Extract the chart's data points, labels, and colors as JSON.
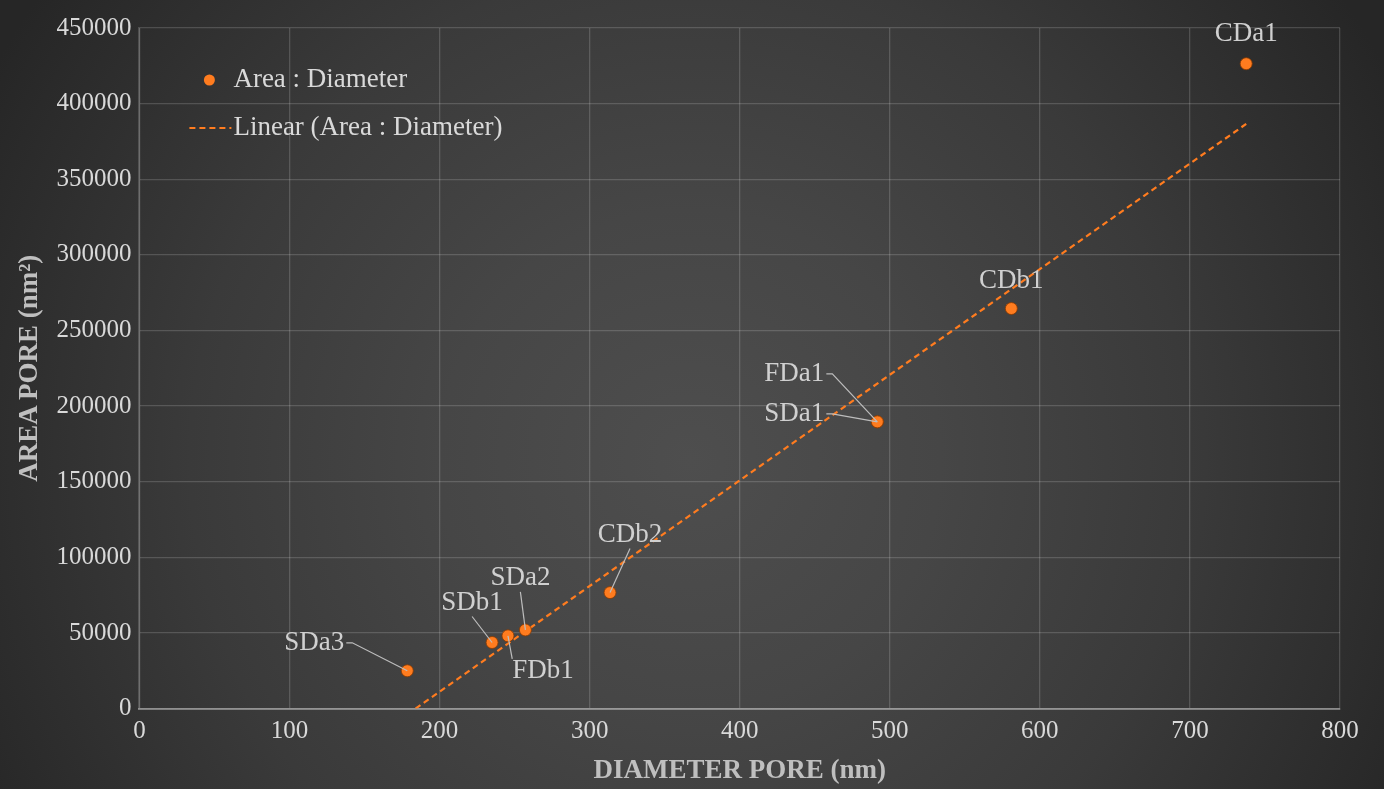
{
  "chart_data": {
    "type": "scatter",
    "xlabel": "DIAMETER PORE (nm)",
    "ylabel": "AREA PORE (nm²)",
    "xlim": [
      0,
      800
    ],
    "xticks": [
      0,
      100,
      200,
      300,
      400,
      500,
      600,
      700,
      800
    ],
    "ylim": [
      0,
      450000
    ],
    "yticks": [
      0,
      50000,
      100000,
      150000,
      200000,
      250000,
      300000,
      350000,
      400000,
      450000
    ],
    "grid": true,
    "legend": "top left",
    "marker": "circle",
    "series": [
      {
        "name": "Area : Diameter",
        "color": "#ff7c1f",
        "x": [
          178.5,
          235,
          245.6,
          257.2,
          313.6,
          491.7,
          491.7,
          581,
          737.5
        ],
        "values": [
          25000,
          43700,
          48100,
          52000,
          76700,
          189600,
          189600,
          264500,
          426400
        ]
      },
      {
        "name": "Linear (Area : Diameter)",
        "type": "line",
        "color": "#ff7c1f",
        "line_style": "dashed",
        "marker": "none",
        "x": [
          184,
          737.5
        ],
        "values": [
          0,
          386600
        ]
      }
    ],
    "annotations": [
      {
        "text": "SDa3",
        "x": 178.5,
        "y": 25000
      },
      {
        "text": "SDb1",
        "x": 235,
        "y": 43700
      },
      {
        "text": "FDb1",
        "x": 245.6,
        "y": 48100
      },
      {
        "text": "SDa2",
        "x": 257.2,
        "y": 52000
      },
      {
        "text": "CDb2",
        "x": 313.6,
        "y": 76700
      },
      {
        "text": "SDa1",
        "x": 491.7,
        "y": 189600
      },
      {
        "text": "FDa1",
        "x": 491.7,
        "y": 189600
      },
      {
        "text": "CDb1",
        "x": 581,
        "y": 264500
      },
      {
        "text": "CDa1",
        "x": 737.5,
        "y": 426400
      }
    ]
  }
}
